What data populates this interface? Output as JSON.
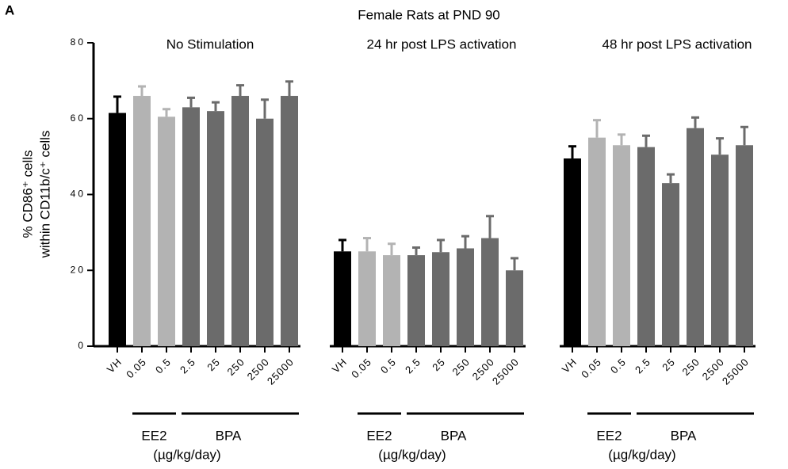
{
  "chart_data": {
    "type": "bar",
    "panel_label": "A",
    "title": "Female Rats at PND 90",
    "y_label": [
      "% CD86⁺ cells",
      "within CD11b/c⁺ cells"
    ],
    "categories": [
      "VH",
      "0.05",
      "0.5",
      "2.5",
      "25",
      "250",
      "2500",
      "25000"
    ],
    "colors": [
      "#000000",
      "#b3b3b3",
      "#b3b3b3",
      "#6b6b6b",
      "#6b6b6b",
      "#6b6b6b",
      "#6b6b6b",
      "#6b6b6b"
    ],
    "groups": [
      {
        "name": "No Stimulation",
        "values": [
          61.5,
          66,
          60.5,
          63,
          62,
          66,
          60,
          66
        ],
        "errors": [
          4.3,
          2.5,
          2,
          2.5,
          2.3,
          2.8,
          5,
          3.8
        ]
      },
      {
        "name": "24 hr post LPS activation",
        "values": [
          25,
          25,
          24,
          24,
          24.8,
          25.8,
          28.5,
          20
        ],
        "errors": [
          3,
          3.5,
          3,
          2,
          3.2,
          3.2,
          5.8,
          3.2
        ]
      },
      {
        "name": "48 hr post LPS activation",
        "values": [
          49.5,
          55,
          53,
          52.5,
          43,
          57.5,
          50.5,
          53
        ],
        "errors": [
          3.2,
          4.6,
          2.8,
          3,
          2.3,
          2.8,
          4.3,
          4.8
        ]
      }
    ],
    "bracket_labels": {
      "ee2": "EE2",
      "bpa": "BPA",
      "unit": "(µg/kg/day)"
    },
    "ylim": [
      0,
      80
    ],
    "yticks": [
      0,
      20,
      40,
      60,
      80
    ]
  }
}
